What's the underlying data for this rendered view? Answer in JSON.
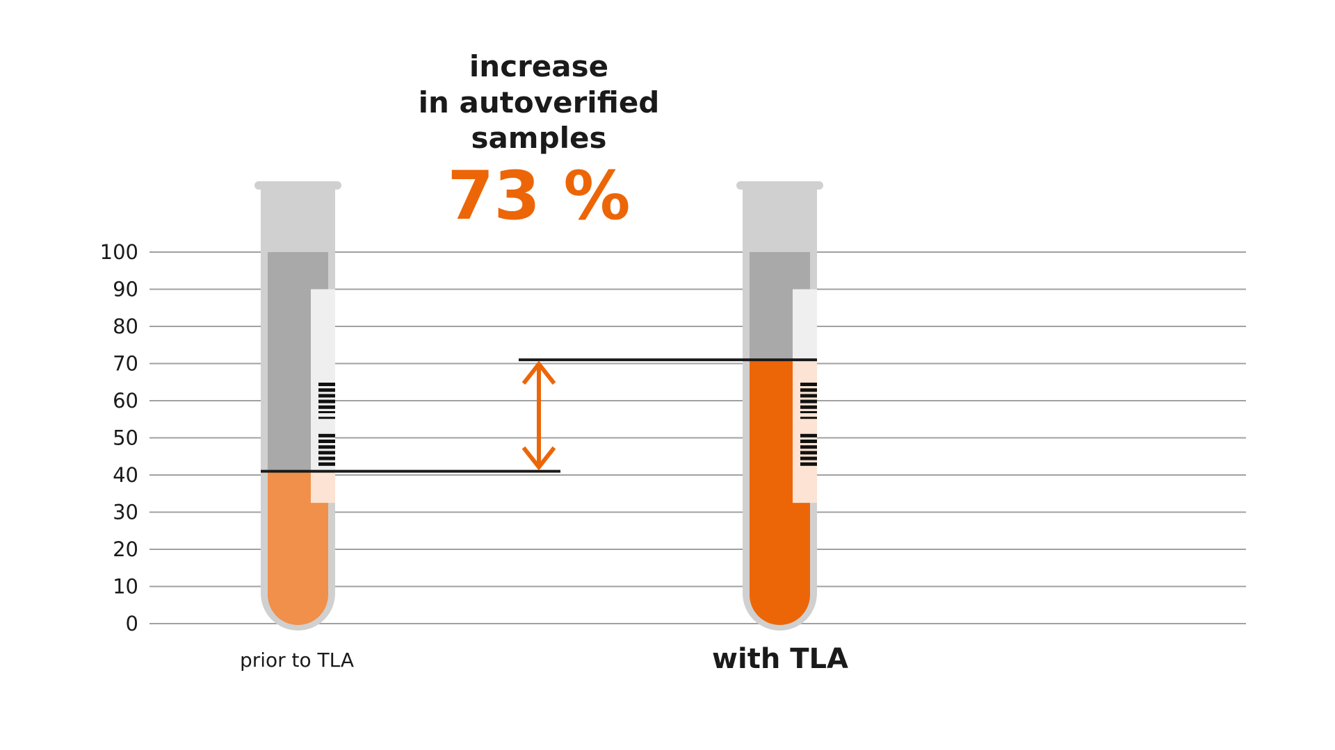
{
  "chart_data": {
    "type": "bar",
    "title_lines": [
      "increase",
      "in autoverified",
      "samples"
    ],
    "headline_value": "73 %",
    "categories": [
      "prior to TLA",
      "with TLA"
    ],
    "values": [
      41,
      71
    ],
    "ylim": [
      0,
      100
    ],
    "yticks": [
      0,
      10,
      20,
      30,
      40,
      50,
      60,
      70,
      80,
      90,
      100
    ],
    "grid": true,
    "xlabel": "",
    "ylabel": "",
    "colors": {
      "accent": "#ec6608",
      "prior_fill": "#f0904a",
      "with_fill": "#ec6608",
      "tube_glass": "#d0d0d0",
      "tube_empty": "#a9a9a9",
      "grid": "#a0a0a0",
      "level_line": "#1a1a1a"
    }
  }
}
